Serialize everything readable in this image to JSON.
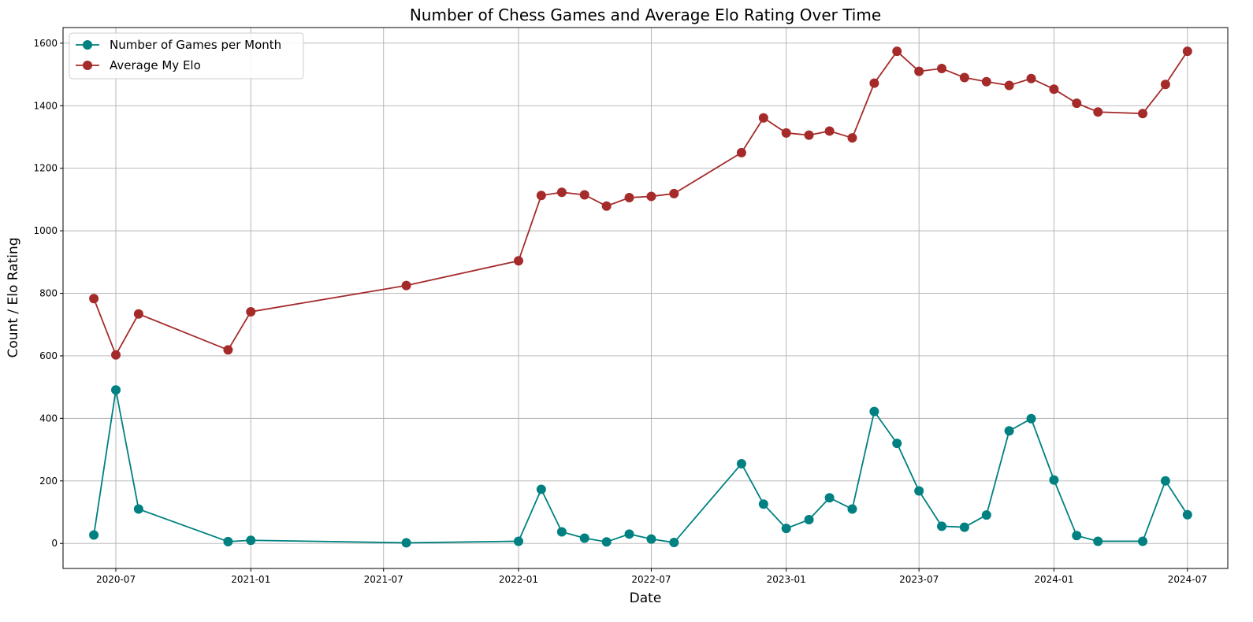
{
  "chart_data": {
    "type": "line",
    "title": "Number of Chess Games and Average Elo Rating Over Time",
    "xlabel": "Date",
    "ylabel": "Count / Elo Rating",
    "ylim": [
      -80,
      1650
    ],
    "xlim": [
      "2020-04-20",
      "2024-08-25"
    ],
    "grid": true,
    "legend_position": "top-left",
    "x": [
      "2020-06-01",
      "2020-07-01",
      "2020-08-01",
      "2020-12-01",
      "2021-01-01",
      "2021-08-01",
      "2022-01-01",
      "2022-02-01",
      "2022-03-01",
      "2022-04-01",
      "2022-05-01",
      "2022-06-01",
      "2022-07-01",
      "2022-08-01",
      "2022-11-01",
      "2022-12-01",
      "2023-01-01",
      "2023-02-01",
      "2023-03-01",
      "2023-04-01",
      "2023-05-01",
      "2023-06-01",
      "2023-07-01",
      "2023-08-01",
      "2023-09-01",
      "2023-10-01",
      "2023-11-01",
      "2023-12-01",
      "2024-01-01",
      "2024-02-01",
      "2024-03-01",
      "2024-05-01",
      "2024-06-01",
      "2024-07-01"
    ],
    "series": [
      {
        "name": "Number of Games per Month",
        "color": "#008080",
        "values": [
          27,
          491,
          110,
          6,
          10,
          2,
          7,
          173,
          37,
          17,
          5,
          30,
          14,
          3,
          255,
          126,
          48,
          76,
          146,
          110,
          422,
          320,
          168,
          55,
          52,
          91,
          360,
          399,
          203,
          25,
          7,
          7,
          200,
          92
        ]
      },
      {
        "name": "Average My Elo",
        "color": "#a52a2a",
        "values": [
          783,
          603,
          734,
          619,
          741,
          825,
          904,
          1113,
          1123,
          1115,
          1079,
          1106,
          1110,
          1119,
          1250,
          1361,
          1313,
          1306,
          1319,
          1297,
          1472,
          1574,
          1510,
          1519,
          1490,
          1477,
          1465,
          1487,
          1453,
          1408,
          1380,
          1375,
          1468,
          1574
        ]
      }
    ],
    "y_ticks": [
      0,
      200,
      400,
      600,
      800,
      1000,
      1200,
      1400,
      1600
    ],
    "x_ticks": [
      {
        "date": "2020-07-01",
        "label": "2020-07"
      },
      {
        "date": "2021-01-01",
        "label": "2021-01"
      },
      {
        "date": "2021-07-01",
        "label": "2021-07"
      },
      {
        "date": "2022-01-01",
        "label": "2022-01"
      },
      {
        "date": "2022-07-01",
        "label": "2022-07"
      },
      {
        "date": "2023-01-01",
        "label": "2023-01"
      },
      {
        "date": "2023-07-01",
        "label": "2023-07"
      },
      {
        "date": "2024-01-01",
        "label": "2024-01"
      },
      {
        "date": "2024-07-01",
        "label": "2024-07"
      }
    ]
  }
}
